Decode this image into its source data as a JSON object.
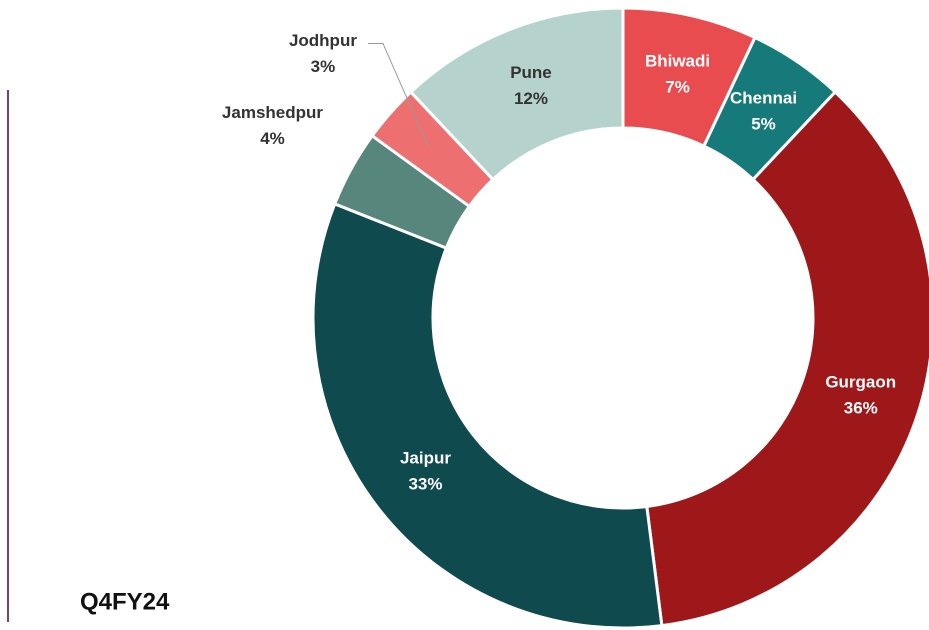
{
  "chart_data": {
    "type": "donut",
    "title": "Q4FY24",
    "categories": [
      "Bhiwadi",
      "Chennai",
      "Gurgaon",
      "Jaipur",
      "Jamshedpur",
      "Jodhpur",
      "Pune"
    ],
    "values": [
      7,
      5,
      36,
      33,
      4,
      3,
      12
    ],
    "value_labels": [
      "7%",
      "5%",
      "36%",
      "33%",
      "4%",
      "3%",
      "12%"
    ],
    "colors": [
      "#e84c4f",
      "#167a7a",
      "#9e1719",
      "#0f4a4e",
      "#57877c",
      "#ee6f70",
      "#b5d3cc"
    ]
  }
}
